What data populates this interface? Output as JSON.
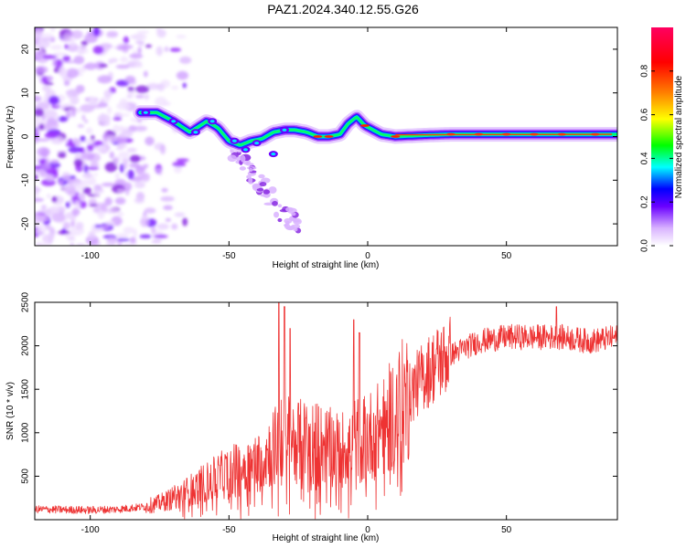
{
  "figure": {
    "title": "PAZ1.2024.340.12.55.G26"
  },
  "chart_data": [
    {
      "type": "heatmap",
      "xlabel": "Height of straight line (km)",
      "ylabel": "Frequency (Hz)",
      "xlim": [
        -120,
        90
      ],
      "ylim": [
        -25,
        25
      ],
      "xticks": [
        -100,
        -50,
        0,
        50
      ],
      "yticks": [
        20,
        10,
        0,
        -10,
        -20
      ],
      "colorbar": {
        "label": "Normalized spectral amplitude",
        "range": [
          0,
          1
        ],
        "ticks": [
          0.0,
          0.2,
          0.4,
          0.6,
          0.8
        ],
        "colors": [
          "#d9b3ff",
          "#6a00ff",
          "#0000ff",
          "#00ffff",
          "#00ff00",
          "#ffff00",
          "#ff8000",
          "#ff0000",
          "#ff0060"
        ]
      },
      "ridge": {
        "x": [
          -82,
          -76,
          -70,
          -64,
          -58,
          -54,
          -50,
          -46,
          -42,
          -38,
          -34,
          -30,
          -26,
          -22,
          -18,
          -14,
          -10,
          -7,
          -4,
          -1,
          2,
          5,
          10,
          20,
          30,
          50,
          70,
          90
        ],
        "y": [
          5.5,
          5.5,
          3.5,
          1.0,
          3.5,
          2.0,
          -1.0,
          -2.0,
          -1.0,
          -0.5,
          1.0,
          1.5,
          1.5,
          1.0,
          0.0,
          0.0,
          0.5,
          3.0,
          4.5,
          2.5,
          1.5,
          0.5,
          0.0,
          0.3,
          0.5,
          0.5,
          0.5,
          0.5
        ]
      },
      "tail": {
        "x": [
          -50,
          -45,
          -40,
          -35,
          -30,
          -25
        ],
        "y": [
          -2,
          -6,
          -10,
          -14,
          -18,
          -20
        ]
      },
      "noise_region_x": [
        -120,
        -80
      ]
    },
    {
      "type": "line",
      "xlabel": "Height of straight line (km)",
      "ylabel": "SNR (10 * v/v)",
      "xlim": [
        -120,
        90
      ],
      "ylim": [
        0,
        2500
      ],
      "xticks": [
        -100,
        -50,
        0,
        50
      ],
      "yticks": [
        500,
        1000,
        1500,
        2000,
        2500
      ],
      "color": "#ee3333",
      "envelope": {
        "x": [
          -120,
          -100,
          -90,
          -80,
          -75,
          -70,
          -60,
          -50,
          -40,
          -35,
          -30,
          -25,
          -20,
          -10,
          -5,
          0,
          5,
          10,
          15,
          20,
          25,
          30,
          40,
          50,
          60,
          70,
          80,
          90
        ],
        "y": [
          120,
          110,
          120,
          150,
          190,
          250,
          400,
          550,
          650,
          800,
          950,
          900,
          900,
          800,
          900,
          950,
          1050,
          1250,
          1450,
          1650,
          1800,
          1900,
          2050,
          2100,
          2100,
          2100,
          2050,
          2100
        ]
      },
      "spikes": {
        "x": [
          -32,
          -30,
          -28,
          -5,
          -3,
          10,
          68
        ],
        "y": [
          2500,
          2450,
          2200,
          2300,
          2150,
          1200,
          2450
        ]
      }
    }
  ]
}
